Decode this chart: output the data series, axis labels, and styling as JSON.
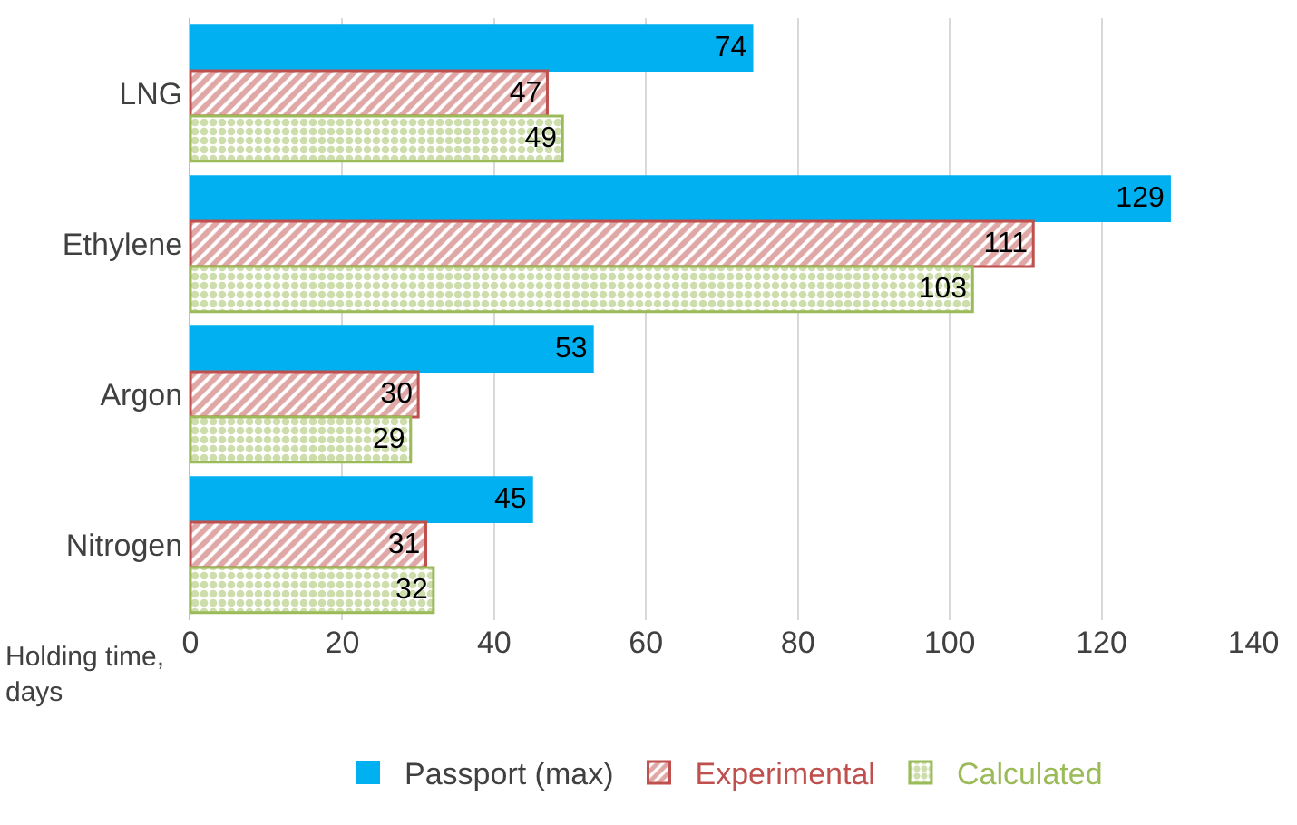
{
  "chart_data": {
    "type": "bar",
    "orientation": "horizontal",
    "categories": [
      "LNG",
      "Ethylene",
      "Argon",
      "Nitrogen"
    ],
    "series": [
      {
        "name": "Passport (max)",
        "color": "#00b0f0",
        "values": [
          74,
          129,
          53,
          45
        ]
      },
      {
        "name": "Experimental",
        "color": "#c0504d",
        "values": [
          47,
          111,
          30,
          31
        ]
      },
      {
        "name": "Calculated",
        "color": "#9bbb59",
        "values": [
          49,
          103,
          29,
          32
        ]
      }
    ],
    "xlabel": "Holding time, days",
    "xlim": [
      0,
      140
    ],
    "xticks": [
      0,
      20,
      40,
      60,
      80,
      100,
      120,
      140
    ],
    "grid": "x",
    "legend": "bottom",
    "data_labels": true
  }
}
